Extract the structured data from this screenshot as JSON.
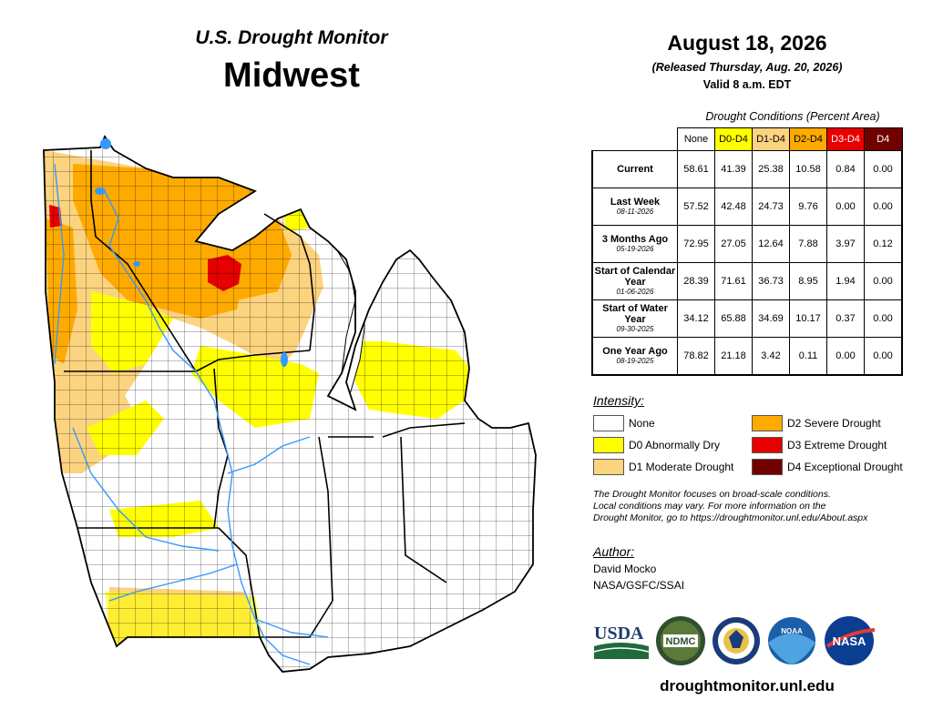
{
  "header": {
    "product": "U.S. Drought Monitor",
    "region": "Midwest",
    "date": "August 18, 2026",
    "released": "(Released Thursday, Aug. 20, 2026)",
    "valid": "Valid 8 a.m. EDT"
  },
  "table": {
    "caption": "Drought Conditions (Percent Area)",
    "columns": [
      "None",
      "D0-D4",
      "D1-D4",
      "D2-D4",
      "D3-D4",
      "D4"
    ],
    "rows": [
      {
        "label": "Current",
        "date": "",
        "values": [
          "58.61",
          "41.39",
          "25.38",
          "10.58",
          "0.84",
          "0.00"
        ]
      },
      {
        "label": "Last Week",
        "date": "08-11-2026",
        "values": [
          "57.52",
          "42.48",
          "24.73",
          "9.76",
          "0.00",
          "0.00"
        ]
      },
      {
        "label": "3 Months Ago",
        "date": "05-19-2026",
        "values": [
          "72.95",
          "27.05",
          "12.64",
          "7.88",
          "3.97",
          "0.12"
        ]
      },
      {
        "label": "Start of Calendar Year",
        "date": "01-06-2026",
        "values": [
          "28.39",
          "71.61",
          "36.73",
          "8.95",
          "1.94",
          "0.00"
        ]
      },
      {
        "label": "Start of Water Year",
        "date": "09-30-2025",
        "values": [
          "34.12",
          "65.88",
          "34.69",
          "10.17",
          "0.37",
          "0.00"
        ]
      },
      {
        "label": "One Year Ago",
        "date": "08-19-2025",
        "values": [
          "78.82",
          "21.18",
          "3.42",
          "0.11",
          "0.00",
          "0.00"
        ]
      }
    ]
  },
  "legend": {
    "title": "Intensity:",
    "items": [
      {
        "label": "None",
        "color": "#ffffff"
      },
      {
        "label": "D0 Abnormally Dry",
        "color": "#ffff00"
      },
      {
        "label": "D1 Moderate Drought",
        "color": "#fcd37f"
      },
      {
        "label": "D2 Severe Drought",
        "color": "#ffaa00"
      },
      {
        "label": "D3 Extreme Drought",
        "color": "#e60000"
      },
      {
        "label": "D4 Exceptional Drought",
        "color": "#730000"
      }
    ]
  },
  "note": {
    "line1": "The Drought Monitor focuses on broad-scale conditions.",
    "line2": "Local conditions may vary. For more information on the",
    "line3": "Drought Monitor, go to https://droughtmonitor.unl.edu/About.aspx"
  },
  "author": {
    "title": "Author:",
    "name": "David Mocko",
    "org": "NASA/GSFC/SSAI"
  },
  "logos": {
    "usda": "USDA",
    "ndmc": "NDMC",
    "noaa": "NOAA",
    "nasa": "NASA"
  },
  "url": "droughtmonitor.unl.edu"
}
